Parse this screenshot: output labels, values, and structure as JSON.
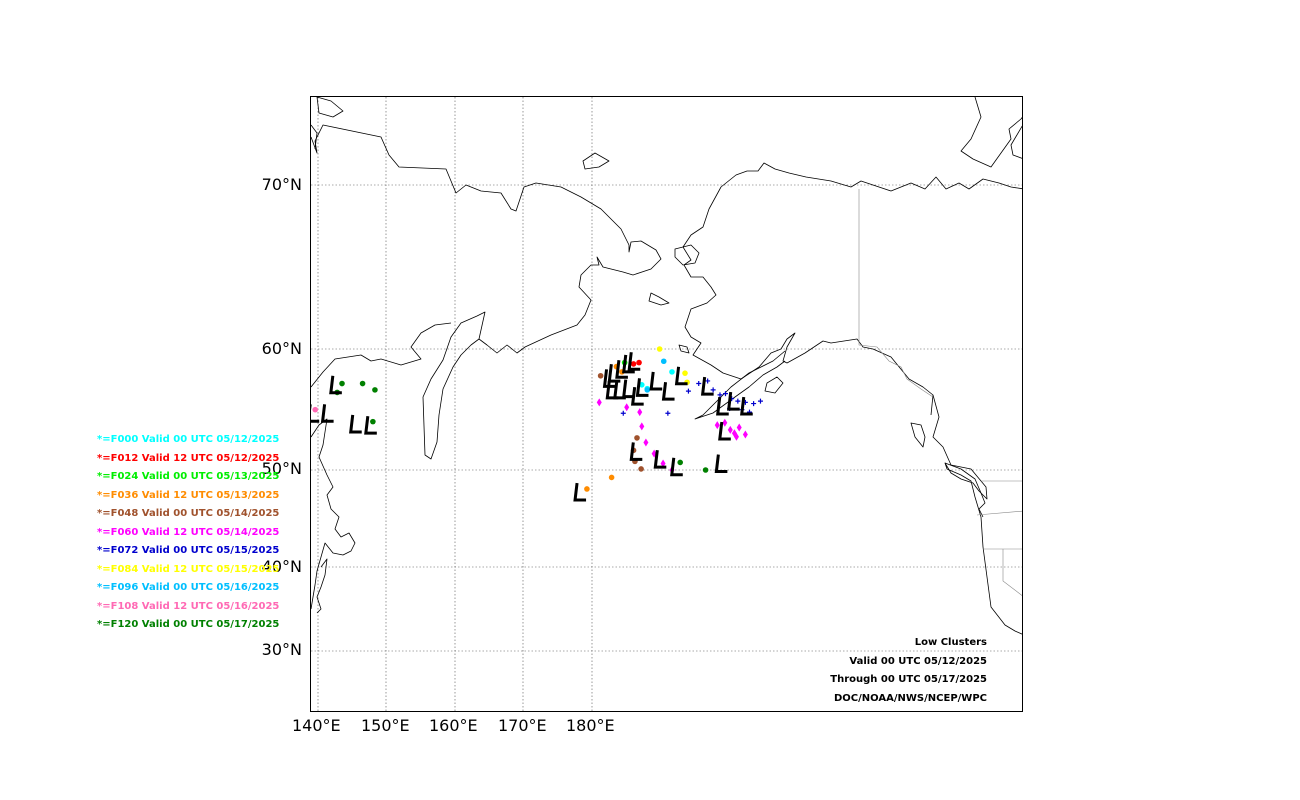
{
  "map": {
    "lat_labels": [
      "70°N",
      "60°N",
      "50°N",
      "40°N",
      "30°N"
    ],
    "lon_labels": [
      "140°E",
      "150°E",
      "160°E",
      "170°E",
      "180°E"
    ]
  },
  "legend": [
    {
      "text": "*=F000 Valid 00 UTC 05/12/2025",
      "color": "#00ffff"
    },
    {
      "text": "*=F012 Valid 12 UTC 05/12/2025",
      "color": "#ff0000"
    },
    {
      "text": "*=F024 Valid 00 UTC 05/13/2025",
      "color": "#00ee00"
    },
    {
      "text": "*=F036 Valid 12 UTC 05/13/2025",
      "color": "#ff8c00"
    },
    {
      "text": "*=F048 Valid 00 UTC 05/14/2025",
      "color": "#a0522d"
    },
    {
      "text": "*=F060 Valid 12 UTC 05/14/2025",
      "color": "#ff00ff"
    },
    {
      "text": "*=F072 Valid 00 UTC 05/15/2025",
      "color": "#0000cd"
    },
    {
      "text": "*=F084 Valid 12 UTC 05/15/2025",
      "color": "#ffff00"
    },
    {
      "text": "*=F096 Valid 00 UTC 05/16/2025",
      "color": "#00bfff"
    },
    {
      "text": "*=F108 Valid 12 UTC 05/16/2025",
      "color": "#ff69b4"
    },
    {
      "text": "*=F120 Valid 00 UTC 05/17/2025",
      "color": "#008000"
    }
  ],
  "info": {
    "title": "Low Clusters",
    "valid": "Valid 00 UTC 05/12/2025",
    "through": "Through 00 UTC 05/17/2025",
    "credit": "DOC/NOAA/NWS/NCEP/WPC"
  },
  "low_centers": [
    {
      "lon": 142.6,
      "lat": 57.3
    },
    {
      "lon": 139.3,
      "lat": 55.0
    },
    {
      "lon": 141.4,
      "lat": 55.0
    },
    {
      "lon": 145.5,
      "lat": 54.1
    },
    {
      "lon": 147.7,
      "lat": 54.0
    },
    {
      "lon": 178.2,
      "lat": 47.9
    },
    {
      "lon": 182.5,
      "lat": 57.8
    },
    {
      "lon": 183.2,
      "lat": 58.2
    },
    {
      "lon": 184.3,
      "lat": 58.5
    },
    {
      "lon": 185.3,
      "lat": 58.9
    },
    {
      "lon": 186.1,
      "lat": 59.1
    },
    {
      "lon": 182.9,
      "lat": 56.9
    },
    {
      "lon": 184.0,
      "lat": 56.9
    },
    {
      "lon": 185.3,
      "lat": 57.0
    },
    {
      "lon": 186.6,
      "lat": 56.4
    },
    {
      "lon": 187.3,
      "lat": 57.1
    },
    {
      "lon": 189.3,
      "lat": 57.6
    },
    {
      "lon": 191.1,
      "lat": 56.8
    },
    {
      "lon": 193.0,
      "lat": 58.0
    },
    {
      "lon": 196.8,
      "lat": 57.2
    },
    {
      "lon": 199.0,
      "lat": 55.6
    },
    {
      "lon": 200.6,
      "lat": 56.0
    },
    {
      "lon": 202.5,
      "lat": 55.6
    },
    {
      "lon": 199.3,
      "lat": 53.5
    },
    {
      "lon": 186.4,
      "lat": 51.7
    },
    {
      "lon": 189.9,
      "lat": 51.0
    },
    {
      "lon": 192.3,
      "lat": 50.3
    },
    {
      "lon": 198.8,
      "lat": 50.6
    }
  ],
  "member_points": [
    {
      "lon": 186.0,
      "lat": 58.9,
      "color": "#ff0000",
      "marker": "dot"
    },
    {
      "lon": 186.8,
      "lat": 59.0,
      "color": "#ff0000",
      "marker": "dot"
    },
    {
      "lon": 183.5,
      "lat": 58.7,
      "color": "#ff8c00",
      "marker": "dot"
    },
    {
      "lon": 184.3,
      "lat": 58.3,
      "color": "#ff8c00",
      "marker": "dot"
    },
    {
      "lon": 181.2,
      "lat": 58.0,
      "color": "#a0522d",
      "marker": "dot"
    },
    {
      "lon": 184.7,
      "lat": 59.0,
      "color": "#00ee00",
      "marker": "dot"
    },
    {
      "lon": 187.2,
      "lat": 57.3,
      "color": "#00ffff",
      "marker": "dot"
    },
    {
      "lon": 188.0,
      "lat": 57.0,
      "color": "#00ffff",
      "marker": "dot"
    },
    {
      "lon": 191.6,
      "lat": 58.3,
      "color": "#00ffff",
      "marker": "dot"
    },
    {
      "lon": 188.0,
      "lat": 56.9,
      "color": "#00bfff",
      "marker": "dot"
    },
    {
      "lon": 190.4,
      "lat": 59.1,
      "color": "#00bfff",
      "marker": "dot"
    },
    {
      "lon": 189.8,
      "lat": 60.0,
      "color": "#ffff00",
      "marker": "dot"
    },
    {
      "lon": 193.5,
      "lat": 58.2,
      "color": "#ffff00",
      "marker": "dot"
    },
    {
      "lon": 193.8,
      "lat": 57.5,
      "color": "#ffff00",
      "marker": "dot"
    },
    {
      "lon": 181.0,
      "lat": 55.9,
      "color": "#ff00ff",
      "marker": "diamond"
    },
    {
      "lon": 185.0,
      "lat": 55.5,
      "color": "#ff00ff",
      "marker": "diamond"
    },
    {
      "lon": 186.9,
      "lat": 55.1,
      "color": "#ff00ff",
      "marker": "diamond"
    },
    {
      "lon": 187.2,
      "lat": 53.9,
      "color": "#ff00ff",
      "marker": "diamond"
    },
    {
      "lon": 187.8,
      "lat": 52.5,
      "color": "#ff00ff",
      "marker": "diamond"
    },
    {
      "lon": 189.0,
      "lat": 51.5,
      "color": "#ff00ff",
      "marker": "diamond"
    },
    {
      "lon": 190.3,
      "lat": 50.6,
      "color": "#ff00ff",
      "marker": "diamond"
    },
    {
      "lon": 191.6,
      "lat": 50.0,
      "color": "#ff00ff",
      "marker": "diamond"
    },
    {
      "lon": 199.3,
      "lat": 54.2,
      "color": "#ff00ff",
      "marker": "diamond"
    },
    {
      "lon": 200.1,
      "lat": 53.6,
      "color": "#ff00ff",
      "marker": "diamond"
    },
    {
      "lon": 200.7,
      "lat": 53.3,
      "color": "#ff00ff",
      "marker": "diamond"
    },
    {
      "lon": 201.4,
      "lat": 53.8,
      "color": "#ff00ff",
      "marker": "diamond"
    },
    {
      "lon": 201.0,
      "lat": 53.0,
      "color": "#ff00ff",
      "marker": "diamond"
    },
    {
      "lon": 202.3,
      "lat": 53.2,
      "color": "#ff00ff",
      "marker": "diamond"
    },
    {
      "lon": 198.2,
      "lat": 54.0,
      "color": "#ff00ff",
      "marker": "diamond"
    },
    {
      "lon": 186.0,
      "lat": 51.8,
      "color": "#a0522d",
      "marker": "dot"
    },
    {
      "lon": 186.2,
      "lat": 50.8,
      "color": "#a0522d",
      "marker": "dot"
    },
    {
      "lon": 187.1,
      "lat": 50.1,
      "color": "#a0522d",
      "marker": "dot"
    },
    {
      "lon": 186.5,
      "lat": 52.9,
      "color": "#a0522d",
      "marker": "dot"
    },
    {
      "lon": 182.8,
      "lat": 49.3,
      "color": "#ff8c00",
      "marker": "dot"
    },
    {
      "lon": 179.2,
      "lat": 48.2,
      "color": "#ff8c00",
      "marker": "dot"
    },
    {
      "lon": 196.5,
      "lat": 50.0,
      "color": "#008000",
      "marker": "dot"
    },
    {
      "lon": 192.8,
      "lat": 50.7,
      "color": "#008000",
      "marker": "dot"
    },
    {
      "lon": 143.5,
      "lat": 57.4,
      "color": "#008000",
      "marker": "dot"
    },
    {
      "lon": 146.5,
      "lat": 57.4,
      "color": "#008000",
      "marker": "dot"
    },
    {
      "lon": 148.3,
      "lat": 56.9,
      "color": "#008000",
      "marker": "dot"
    },
    {
      "lon": 148.0,
      "lat": 54.3,
      "color": "#008000",
      "marker": "dot"
    },
    {
      "lon": 142.8,
      "lat": 56.7,
      "color": "#008000",
      "marker": "dot"
    },
    {
      "lon": 139.6,
      "lat": 55.3,
      "color": "#ff69b4",
      "marker": "dot"
    },
    {
      "lon": 195.5,
      "lat": 57.4,
      "color": "#0000cd",
      "marker": "plus"
    },
    {
      "lon": 196.8,
      "lat": 57.6,
      "color": "#0000cd",
      "marker": "plus"
    },
    {
      "lon": 197.6,
      "lat": 56.9,
      "color": "#0000cd",
      "marker": "plus"
    },
    {
      "lon": 198.6,
      "lat": 56.5,
      "color": "#0000cd",
      "marker": "plus"
    },
    {
      "lon": 199.4,
      "lat": 56.6,
      "color": "#0000cd",
      "marker": "plus"
    },
    {
      "lon": 200.3,
      "lat": 56.2,
      "color": "#0000cd",
      "marker": "plus"
    },
    {
      "lon": 201.2,
      "lat": 56.0,
      "color": "#0000cd",
      "marker": "plus"
    },
    {
      "lon": 202.3,
      "lat": 55.9,
      "color": "#0000cd",
      "marker": "plus"
    },
    {
      "lon": 203.5,
      "lat": 55.8,
      "color": "#0000cd",
      "marker": "plus"
    },
    {
      "lon": 200.0,
      "lat": 55.4,
      "color": "#0000cd",
      "marker": "plus"
    },
    {
      "lon": 201.8,
      "lat": 55.3,
      "color": "#0000cd",
      "marker": "plus"
    },
    {
      "lon": 202.9,
      "lat": 55.1,
      "color": "#0000cd",
      "marker": "plus"
    },
    {
      "lon": 194.0,
      "lat": 56.8,
      "color": "#0000cd",
      "marker": "plus"
    },
    {
      "lon": 184.5,
      "lat": 55.0,
      "color": "#0000cd",
      "marker": "plus"
    },
    {
      "lon": 191.0,
      "lat": 55.0,
      "color": "#0000cd",
      "marker": "plus"
    },
    {
      "lon": 204.5,
      "lat": 56.0,
      "color": "#0000cd",
      "marker": "plus"
    }
  ]
}
